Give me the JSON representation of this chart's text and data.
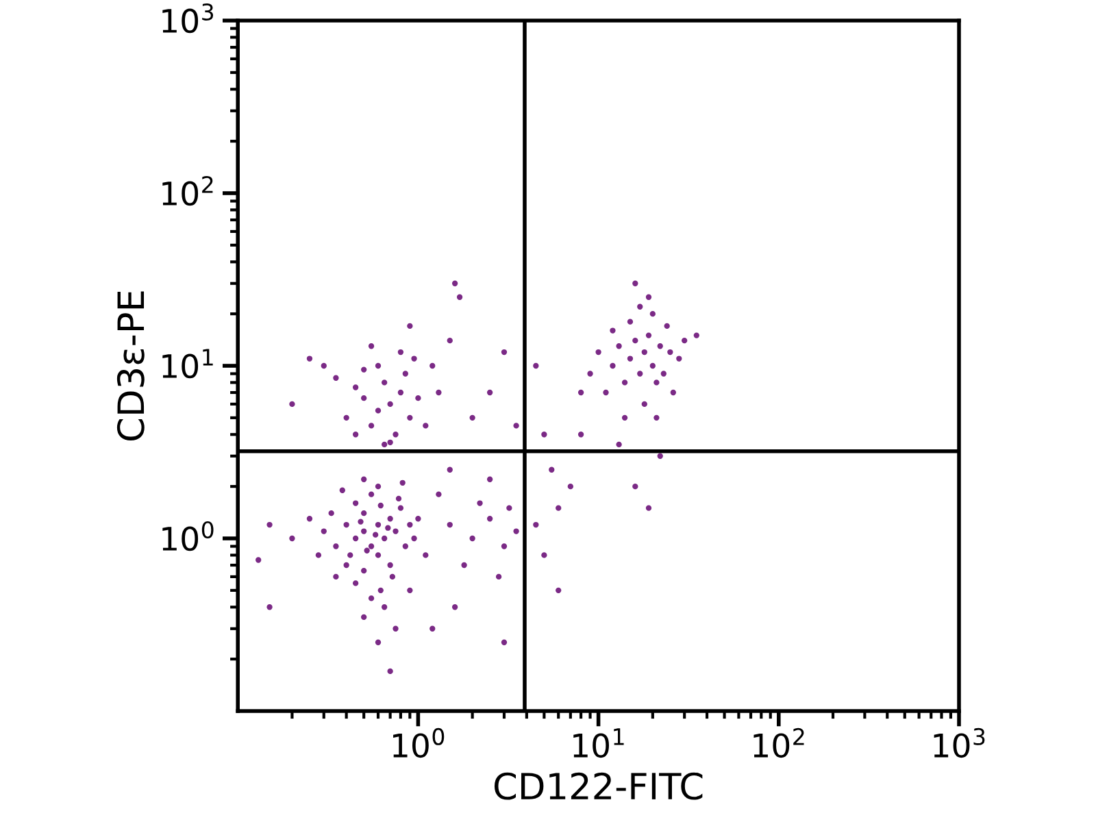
{
  "chart_data": {
    "type": "scatter",
    "xlabel": "CD122-FITC",
    "ylabel": "CD3ε-PE",
    "xlim": [
      0.1,
      1000
    ],
    "ylim": [
      0.1,
      1000
    ],
    "log": "xy",
    "grid": false,
    "marker": "circle",
    "xticks": [
      {
        "value": 1,
        "label": "10$^{0}$"
      },
      {
        "value": 10,
        "label": "10$^{1}$"
      },
      {
        "value": 100,
        "label": "10$^{2}$"
      },
      {
        "value": 1000,
        "label": "10$^{3}$"
      }
    ],
    "yticks": [
      {
        "value": 1,
        "label": "10$^{0}$"
      },
      {
        "value": 10,
        "label": "10$^{1}$"
      },
      {
        "value": 100,
        "label": "10$^{2}$"
      },
      {
        "value": 1000,
        "label": "10$^{3}$"
      }
    ],
    "ref_lines": [
      {
        "axis": "x",
        "value": 3.9,
        "color": "#000000"
      },
      {
        "axis": "y",
        "value": 3.2,
        "color": "#000000"
      }
    ],
    "series": [
      {
        "color": "#7b2a86",
        "x": [
          0.5,
          0.6,
          0.45,
          0.55,
          0.7,
          0.65,
          0.4,
          0.5,
          0.6,
          0.75,
          0.8,
          0.35,
          0.45,
          0.55,
          0.7,
          0.5,
          0.4,
          0.85,
          0.9,
          0.3,
          0.62,
          0.48,
          0.58,
          0.68,
          0.52,
          0.42,
          0.78,
          0.95,
          0.33,
          0.6,
          0.5,
          0.72,
          0.45,
          0.62,
          0.38,
          0.82,
          1.0,
          0.28,
          0.25,
          0.55,
          0.65,
          0.5,
          0.75,
          0.9,
          0.35,
          1.1,
          0.2,
          0.15,
          0.13,
          0.6,
          0.7,
          1.2,
          0.7,
          0.6,
          0.8,
          0.5,
          0.65,
          0.9,
          0.55,
          0.75,
          0.45,
          1.0,
          0.85,
          0.6,
          0.7,
          0.4,
          1.1,
          0.95,
          0.5,
          1.3,
          0.35,
          0.8,
          0.55,
          0.3,
          1.2,
          0.65,
          0.45,
          0.25,
          0.2,
          1.5,
          0.9,
          1.6,
          18,
          20,
          15,
          22,
          17,
          19,
          14,
          25,
          16,
          21,
          12,
          24,
          18,
          13,
          28,
          20,
          15,
          11,
          30,
          17,
          23,
          10,
          26,
          14,
          19,
          16,
          35,
          12,
          9,
          21,
          13,
          16,
          19,
          8,
          22,
          1.5,
          2,
          2.5,
          3,
          1.8,
          2.2,
          3.5,
          1.3,
          2.8,
          1.6,
          2.5,
          3.2,
          4.5,
          5,
          6,
          7,
          5.5,
          1.5,
          0.15,
          3,
          2,
          2.5,
          3.5,
          4.5,
          5,
          3,
          6,
          8,
          1.7
        ],
        "values": [
          1.1,
          1.2,
          1.0,
          0.9,
          1.3,
          1.0,
          1.2,
          1.4,
          0.8,
          1.1,
          1.5,
          0.9,
          1.6,
          1.8,
          0.7,
          0.65,
          0.7,
          0.9,
          1.2,
          1.1,
          1.55,
          1.25,
          1.05,
          1.15,
          0.85,
          0.8,
          1.7,
          1.0,
          1.4,
          2.0,
          2.2,
          0.6,
          0.55,
          0.5,
          1.9,
          2.1,
          1.3,
          0.8,
          1.3,
          0.45,
          0.4,
          0.35,
          0.3,
          0.5,
          0.6,
          0.8,
          1.0,
          1.2,
          0.75,
          0.25,
          0.17,
          0.3,
          6,
          5.5,
          7,
          6.5,
          8,
          5,
          4.5,
          4,
          7.5,
          6.5,
          9,
          10,
          3.6,
          5,
          4.5,
          11,
          9.5,
          7,
          8.5,
          12,
          13,
          10,
          10,
          3.5,
          4,
          11,
          6,
          14,
          17,
          30,
          12,
          10,
          11,
          13,
          9,
          15,
          8,
          12,
          14,
          8,
          10,
          17,
          6,
          13,
          11,
          20,
          18,
          7,
          14,
          22,
          9,
          12,
          7,
          5,
          25,
          30,
          15,
          16,
          9,
          5,
          3.5,
          2,
          1.5,
          4,
          3,
          1.2,
          1.0,
          1.3,
          0.9,
          0.7,
          1.6,
          1.1,
          1.8,
          0.6,
          0.4,
          2.2,
          1.5,
          1.2,
          0.8,
          1.5,
          2.0,
          2.5,
          2.5,
          0.4,
          0.25,
          5,
          7,
          4.5,
          10,
          4,
          12,
          0.5,
          7,
          25
        ]
      }
    ]
  }
}
